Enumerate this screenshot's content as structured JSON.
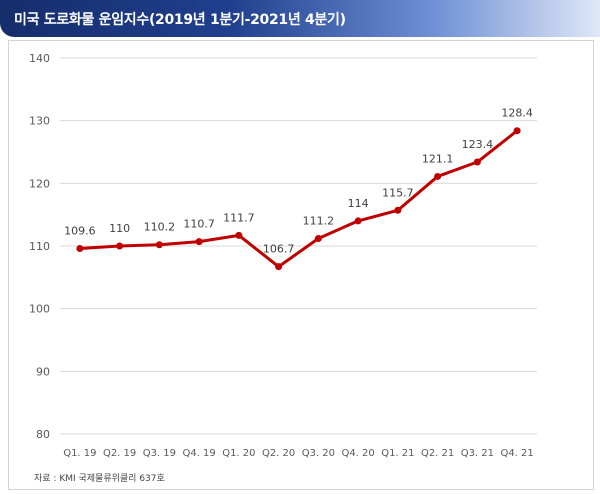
{
  "header": {
    "title": "미국 도로화물 운임지수(2019년 1분기-2021년 4분기)"
  },
  "source": "자료 : KMI 국제물류위클리 637호",
  "colors": {
    "line": "#c00000",
    "title_bar": "#1f3f8e"
  },
  "chart_data": {
    "type": "line",
    "title": "미국 도로화물 운임지수(2019년 1분기-2021년 4분기)",
    "xlabel": "",
    "ylabel": "",
    "ylim": [
      80,
      140
    ],
    "yticks": [
      80,
      90,
      100,
      110,
      120,
      130,
      140
    ],
    "grid": true,
    "legend": "none",
    "categories": [
      "Q1. 19",
      "Q2. 19",
      "Q3. 19",
      "Q4. 19",
      "Q1. 20",
      "Q2. 20",
      "Q3. 20",
      "Q4. 20",
      "Q1. 21",
      "Q2. 21",
      "Q3. 21",
      "Q4. 21"
    ],
    "series": [
      {
        "values": [
          109.6,
          110,
          110.2,
          110.7,
          111.7,
          106.7,
          111.2,
          114,
          115.7,
          121.1,
          123.4,
          128.4
        ],
        "labels": [
          "109.6",
          "110",
          "110.2",
          "110.7",
          "111.7",
          "106.7",
          "111.2",
          "114",
          "115.7",
          "121.1",
          "123.4",
          "128.4"
        ]
      }
    ]
  }
}
